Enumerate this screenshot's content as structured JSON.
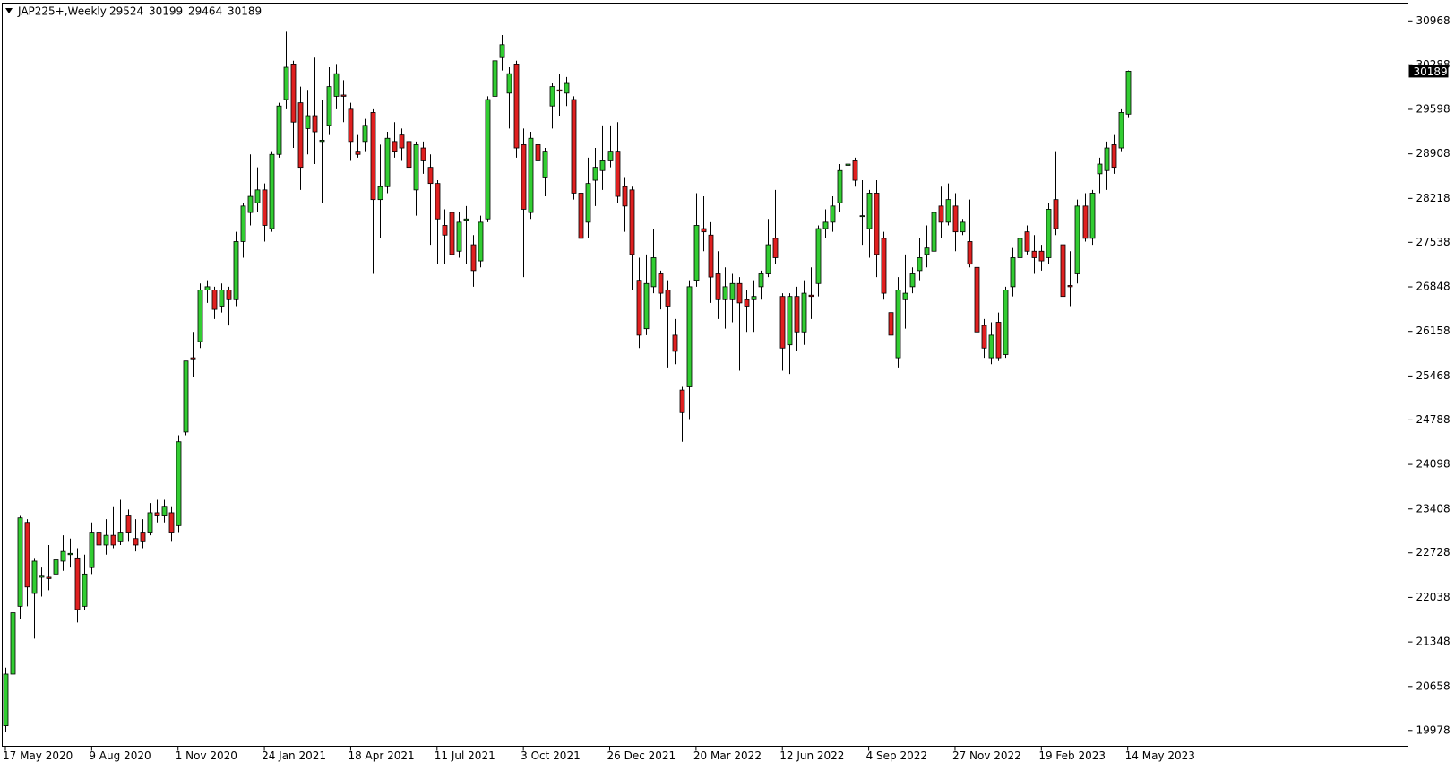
{
  "chart_data": {
    "type": "candlestick",
    "title": "JAP225+,Weekly",
    "categories": [
      "17 May 2020",
      null,
      null,
      null,
      null,
      null,
      null,
      null,
      null,
      null,
      null,
      null,
      "9 Aug 2020",
      null,
      null,
      null,
      null,
      null,
      null,
      null,
      null,
      null,
      null,
      null,
      "1 Nov 2020",
      null,
      null,
      null,
      null,
      null,
      null,
      null,
      null,
      null,
      null,
      null,
      "24 Jan 2021",
      null,
      null,
      null,
      null,
      null,
      null,
      null,
      null,
      null,
      null,
      null,
      "18 Apr 2021",
      null,
      null,
      null,
      null,
      null,
      null,
      null,
      null,
      null,
      null,
      null,
      "11 Jul 2021",
      null,
      null,
      null,
      null,
      null,
      null,
      null,
      null,
      null,
      null,
      null,
      "3 Oct 2021",
      null,
      null,
      null,
      null,
      null,
      null,
      null,
      null,
      null,
      null,
      null,
      "26 Dec 2021",
      null,
      null,
      null,
      null,
      null,
      null,
      null,
      null,
      null,
      null,
      null,
      "20 Mar 2022",
      null,
      null,
      null,
      null,
      null,
      null,
      null,
      null,
      null,
      null,
      null,
      "12 Jun 2022",
      null,
      null,
      null,
      null,
      null,
      null,
      null,
      null,
      null,
      null,
      null,
      "4 Sep 2022",
      null,
      null,
      null,
      null,
      null,
      null,
      null,
      null,
      null,
      null,
      null,
      "27 Nov 2022",
      null,
      null,
      null,
      null,
      null,
      null,
      null,
      null,
      null,
      null,
      null,
      "19 Feb 2023",
      null,
      null,
      null,
      null,
      null,
      null,
      null,
      null,
      null,
      null,
      null,
      "14 May 2023"
    ],
    "open": [
      20050,
      20850,
      21900,
      23200,
      22100,
      22350,
      22350,
      22400,
      22600,
      22700,
      22650,
      21900,
      22500,
      23050,
      22850,
      23000,
      22900,
      23300,
      22950,
      23050,
      23050,
      23350,
      23300,
      23350,
      23150,
      24600,
      25750,
      26000,
      26800,
      26800,
      26550,
      26800,
      26650,
      27550,
      28000,
      28150,
      28350,
      27750,
      28900,
      29750,
      30300,
      29700,
      29300,
      29500,
      29100,
      29350,
      29800,
      29820,
      29600,
      28950,
      29100,
      29550,
      28200,
      28400,
      29100,
      29200,
      29100,
      28350,
      29000,
      28700,
      28450,
      27800,
      28000,
      27400,
      27880,
      27500,
      27250,
      27900,
      29800,
      30400,
      29850,
      30300,
      29050,
      28000,
      29050,
      28550,
      29650,
      29900,
      29850,
      29750,
      28300,
      27850,
      28500,
      28650,
      28800,
      28950,
      28400,
      28350,
      26950,
      26200,
      26850,
      27050,
      26800,
      26100,
      25250,
      25300,
      26950,
      27750,
      27650,
      27050,
      26650,
      26650,
      26900,
      26650,
      26650,
      26850,
      27050,
      27600,
      26700,
      25950,
      26700,
      26150,
      26720,
      26900,
      27750,
      27850,
      28150,
      28730,
      28800,
      27950,
      27750,
      28300,
      27600,
      26450,
      25750,
      26650,
      26850,
      27100,
      27350,
      27400,
      28100,
      27850,
      28100,
      27700,
      27550,
      27150,
      26250,
      25750,
      26300,
      25800,
      26850,
      27300,
      27700,
      27400,
      27400,
      27300,
      28200,
      27500,
      26870,
      27050,
      28100,
      27600,
      28600,
      28650,
      29050,
      29000,
      29524
    ],
    "high": [
      20950,
      21900,
      23300,
      23250,
      22650,
      22500,
      22850,
      22900,
      23000,
      22950,
      22800,
      22700,
      23200,
      23300,
      23250,
      23450,
      23550,
      23400,
      23250,
      23250,
      23500,
      23550,
      23550,
      23450,
      24550,
      25700,
      26150,
      26900,
      26950,
      26850,
      26900,
      26850,
      27700,
      28150,
      28900,
      28700,
      28450,
      28950,
      29700,
      30800,
      30350,
      29950,
      29900,
      30400,
      29750,
      30250,
      30300,
      30050,
      29700,
      29200,
      29450,
      29600,
      29050,
      29250,
      29400,
      29300,
      29400,
      29100,
      29100,
      28900,
      28500,
      28050,
      28050,
      28000,
      28100,
      27650,
      27950,
      29800,
      30400,
      30750,
      30250,
      30350,
      29300,
      29250,
      29600,
      29000,
      30000,
      30150,
      30100,
      29800,
      28650,
      28850,
      29000,
      29350,
      29350,
      29400,
      28550,
      28400,
      27300,
      27350,
      27750,
      27100,
      26950,
      26350,
      25300,
      26950,
      28300,
      28250,
      27850,
      27400,
      27150,
      27050,
      27000,
      26800,
      26950,
      27100,
      27900,
      28350,
      26750,
      26750,
      26850,
      26950,
      27150,
      27800,
      28050,
      28250,
      28750,
      29150,
      28850,
      28500,
      28350,
      28500,
      27700,
      26450,
      27000,
      27350,
      27150,
      27600,
      27800,
      28250,
      28400,
      28450,
      28300,
      27900,
      28200,
      27350,
      26350,
      26300,
      26450,
      26850,
      27450,
      27700,
      27800,
      27650,
      27500,
      28150,
      28950,
      27700,
      27400,
      28200,
      28300,
      28350,
      28850,
      29100,
      29200,
      29600,
      30199
    ],
    "low": [
      19950,
      20650,
      21700,
      21900,
      21400,
      22050,
      22150,
      22300,
      22450,
      22500,
      21650,
      21850,
      22400,
      22600,
      22700,
      22800,
      22850,
      22900,
      22750,
      22800,
      23000,
      23200,
      23200,
      22900,
      23050,
      24550,
      25450,
      25900,
      26600,
      26350,
      26450,
      26250,
      26550,
      27300,
      27800,
      28000,
      27550,
      27700,
      28850,
      29600,
      29000,
      28350,
      28900,
      28750,
      28150,
      29200,
      29600,
      29400,
      28800,
      28850,
      28950,
      27050,
      27600,
      28300,
      28850,
      28800,
      28600,
      27950,
      28600,
      27500,
      27200,
      27200,
      27100,
      27300,
      27200,
      26850,
      27150,
      27850,
      29600,
      30200,
      29300,
      28850,
      27000,
      27900,
      28400,
      28250,
      29300,
      29500,
      29650,
      28200,
      27350,
      27600,
      28100,
      28350,
      28700,
      28150,
      27700,
      26800,
      25900,
      26100,
      26750,
      26500,
      25600,
      25650,
      24450,
      24800,
      26850,
      27400,
      26600,
      26350,
      26200,
      26300,
      25550,
      26150,
      26150,
      26650,
      27000,
      27200,
      25550,
      25500,
      25850,
      25950,
      26350,
      26700,
      27600,
      27700,
      28000,
      28600,
      28400,
      27500,
      27300,
      27000,
      26650,
      25700,
      25600,
      26200,
      26750,
      26950,
      27150,
      27300,
      27600,
      27800,
      27400,
      27650,
      27150,
      25900,
      25750,
      25650,
      25700,
      25750,
      26700,
      27100,
      27350,
      27050,
      27100,
      27200,
      27650,
      26450,
      26550,
      26900,
      27550,
      27500,
      28300,
      28350,
      28600,
      28950,
      29464
    ],
    "close": [
      20850,
      21800,
      23270,
      22200,
      22600,
      22380,
      22330,
      22620,
      22750,
      22720,
      21850,
      22400,
      23050,
      22850,
      23000,
      22850,
      23050,
      23050,
      22850,
      22900,
      23350,
      23300,
      23450,
      23050,
      24450,
      25700,
      25720,
      26800,
      26850,
      26500,
      26800,
      26650,
      27550,
      28100,
      28250,
      28350,
      27800,
      28900,
      29650,
      30250,
      29400,
      28700,
      29500,
      29250,
      29120,
      29950,
      30150,
      29800,
      29100,
      28900,
      29350,
      28200,
      28400,
      29150,
      28950,
      29000,
      28700,
      29050,
      28800,
      28450,
      27900,
      27650,
      27350,
      27850,
      27900,
      27100,
      27850,
      29750,
      30350,
      30600,
      30150,
      29000,
      28050,
      29150,
      28800,
      28950,
      29950,
      29880,
      30000,
      28300,
      27600,
      28450,
      28700,
      28800,
      28950,
      28250,
      28100,
      27350,
      26100,
      26900,
      27300,
      26750,
      26550,
      25850,
      24900,
      26850,
      27800,
      27700,
      27000,
      26650,
      26850,
      26900,
      26600,
      26550,
      26700,
      27050,
      27500,
      27300,
      25900,
      26700,
      26150,
      26750,
      26700,
      27750,
      27850,
      28100,
      28650,
      28750,
      28500,
      27950,
      28300,
      27350,
      26750,
      26100,
      26800,
      26750,
      27050,
      27300,
      27450,
      28000,
      27850,
      28200,
      27700,
      27850,
      27200,
      26150,
      25900,
      26100,
      25750,
      26800,
      27300,
      27600,
      27400,
      27300,
      27250,
      28050,
      27750,
      26700,
      26850,
      28100,
      27600,
      28300,
      28750,
      29000,
      28700,
      29550,
      30189
    ],
    "up_color": "#32cd32",
    "down_color": "#e02020",
    "ylim": [
      19732,
      31243
    ],
    "yticks": [
      19978,
      20658,
      21348,
      22038,
      22728,
      23408,
      24098,
      24788,
      25468,
      26158,
      26848,
      27538,
      28218,
      28908,
      29598,
      30288,
      30968
    ]
  }
}
